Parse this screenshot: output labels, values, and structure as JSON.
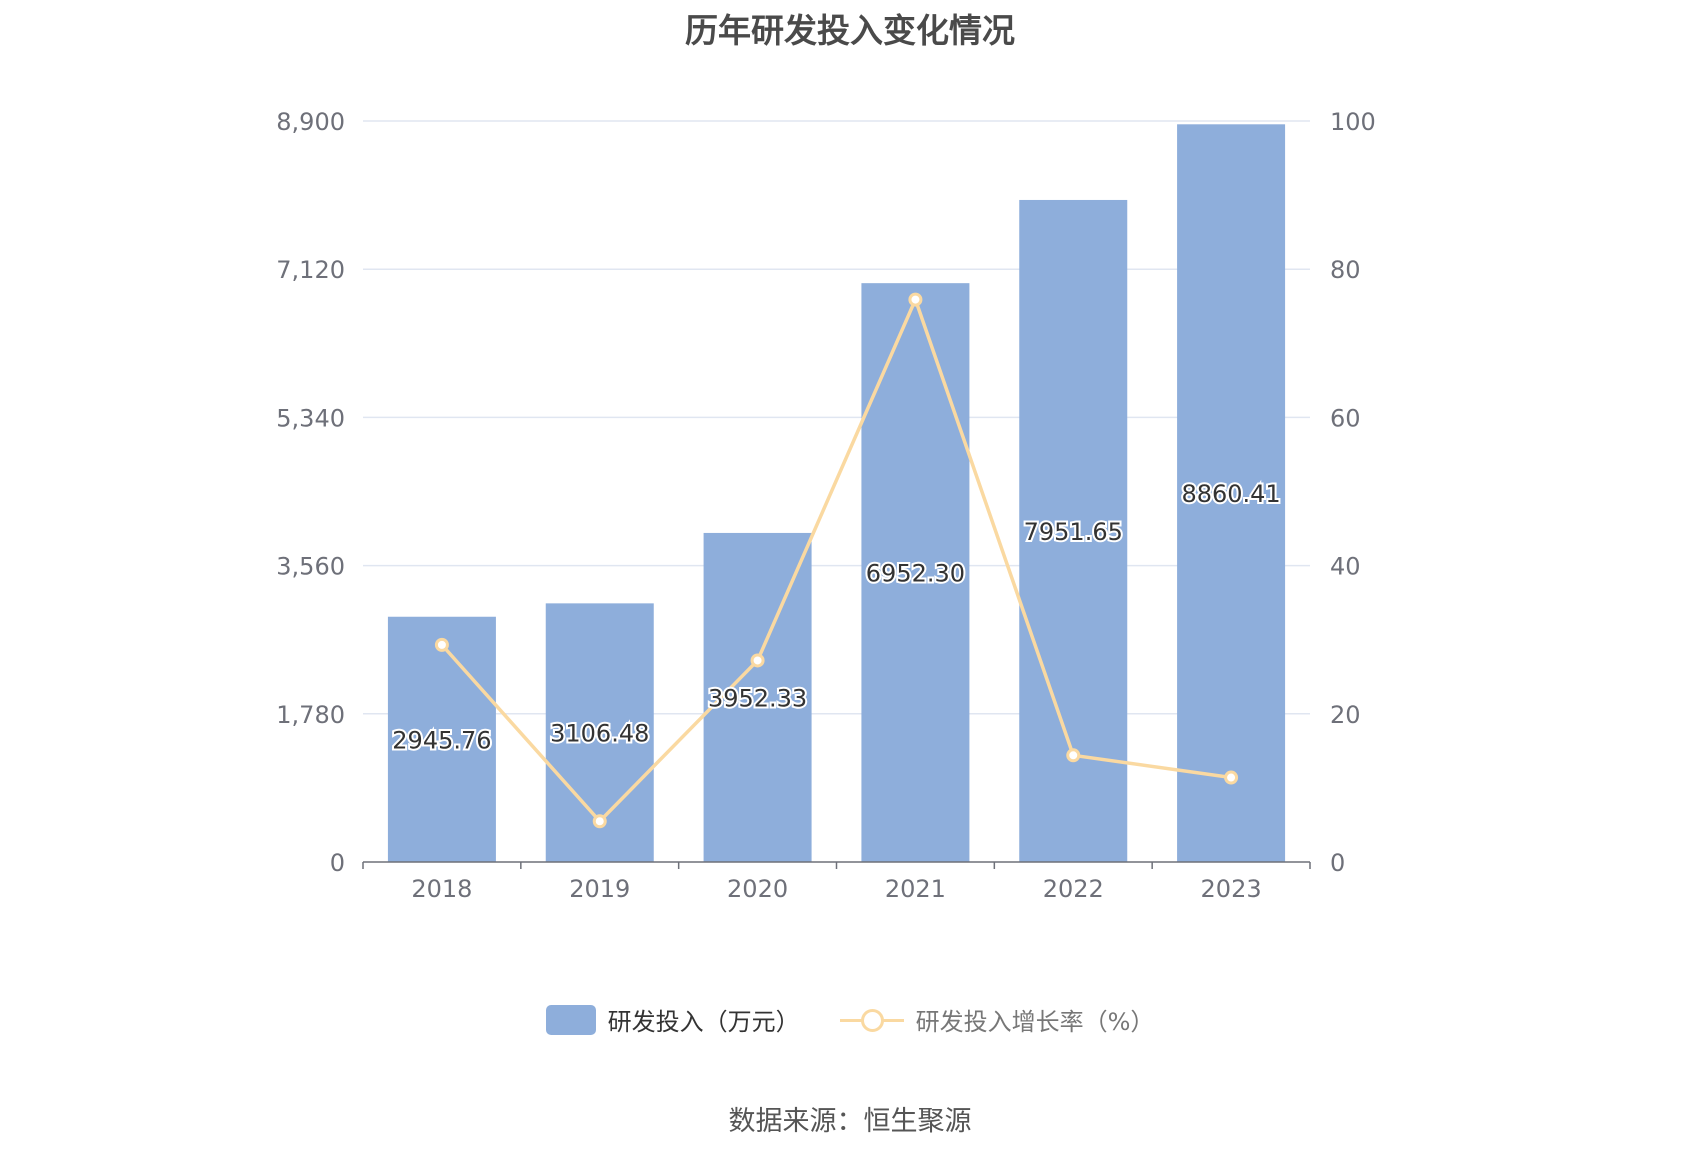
{
  "title": "历年研发投入变化情况",
  "source": "数据来源：恒生聚源",
  "chart_data": {
    "type": "bar",
    "categories": [
      "2018",
      "2019",
      "2020",
      "2021",
      "2022",
      "2023"
    ],
    "series": [
      {
        "name": "研发投入（万元）",
        "type": "bar",
        "axis": "left",
        "color": "#8eaedb",
        "values": [
          2945.76,
          3106.48,
          3952.33,
          6952.3,
          7951.65,
          8860.41
        ],
        "labels": [
          "2945.76",
          "3106.48",
          "3952.33",
          "6952.30",
          "7951.65",
          "8860.41"
        ]
      },
      {
        "name": "研发投入增长率（%）",
        "type": "line",
        "axis": "right",
        "color": "#fad9a1",
        "values": [
          29.3,
          5.5,
          27.2,
          75.9,
          14.4,
          11.4
        ]
      }
    ],
    "y_left": {
      "min": 0,
      "max": 8900,
      "ticks": [
        0,
        1780,
        3560,
        5340,
        7120,
        8900
      ],
      "tick_labels": [
        "0",
        "1,780",
        "3,560",
        "5,340",
        "7,120",
        "8,900"
      ]
    },
    "y_right": {
      "min": 0,
      "max": 100,
      "ticks": [
        0,
        20,
        40,
        60,
        80,
        100
      ],
      "tick_labels": [
        "0",
        "20",
        "40",
        "60",
        "80",
        "100"
      ]
    },
    "grid": true,
    "legend_position": "bottom"
  }
}
